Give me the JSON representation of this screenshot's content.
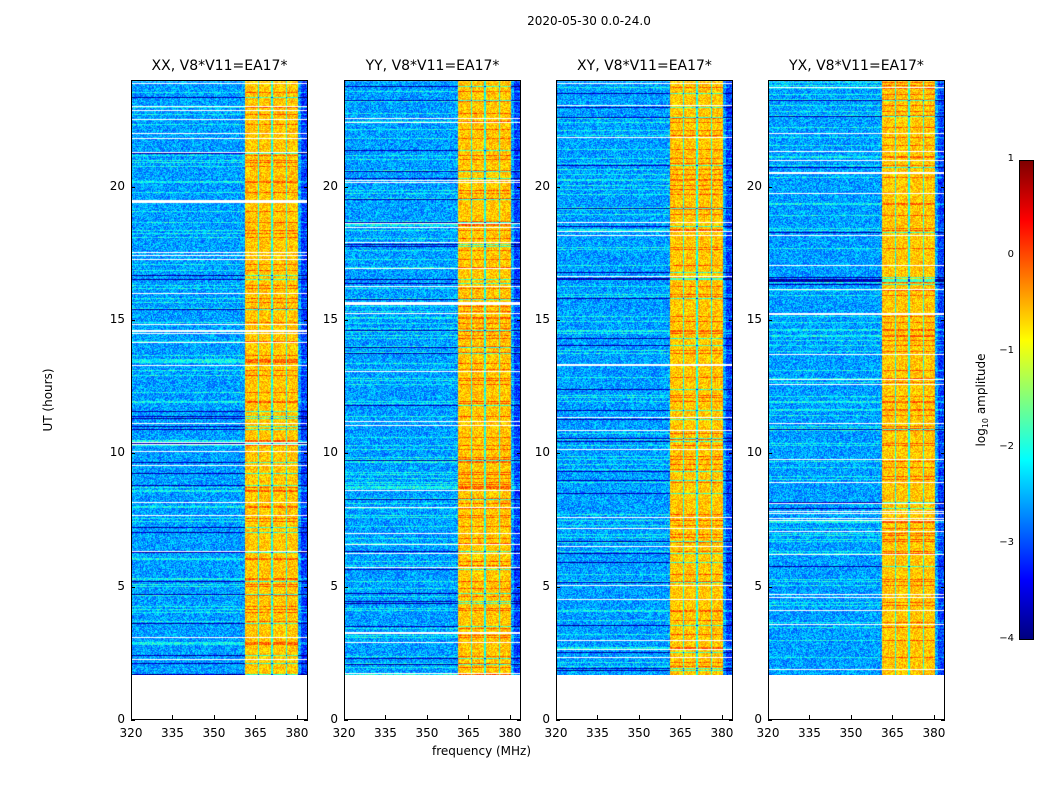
{
  "chart_data": {
    "type": "heatmap",
    "title": "2020-05-30 0.0-24.0",
    "xlabel": "frequency (MHz)",
    "ylabel": "UT (hours)",
    "xlim": [
      320,
      384
    ],
    "ylim": [
      0,
      24
    ],
    "data_time_range": [
      1.7,
      24
    ],
    "xticks": [
      "320",
      "335",
      "350",
      "365",
      "380"
    ],
    "yticks": [
      "0",
      "5",
      "10",
      "15",
      "20"
    ],
    "panels": [
      {
        "title": "XX, V8*V11=EA17*"
      },
      {
        "title": "YY, V8*V11=EA17*"
      },
      {
        "title": "XY, V8*V11=EA17*"
      },
      {
        "title": "YX, V8*V11=EA17*"
      }
    ],
    "bright_subbands_mhz": [
      [
        360.5,
        365.5
      ],
      [
        365.8,
        370.2
      ],
      [
        370.9,
        375.6
      ],
      [
        376,
        380
      ]
    ],
    "background_level": -2.6,
    "band_level": -0.6,
    "colorbar": {
      "label": "log10 amplitude",
      "label_main": "log",
      "label_sub": "10",
      "label_rest": " amplitude",
      "range": [
        -4,
        1
      ],
      "ticks": [
        "1",
        "0",
        "−1",
        "−2",
        "−3",
        "−4"
      ],
      "colormap": "jet"
    }
  }
}
